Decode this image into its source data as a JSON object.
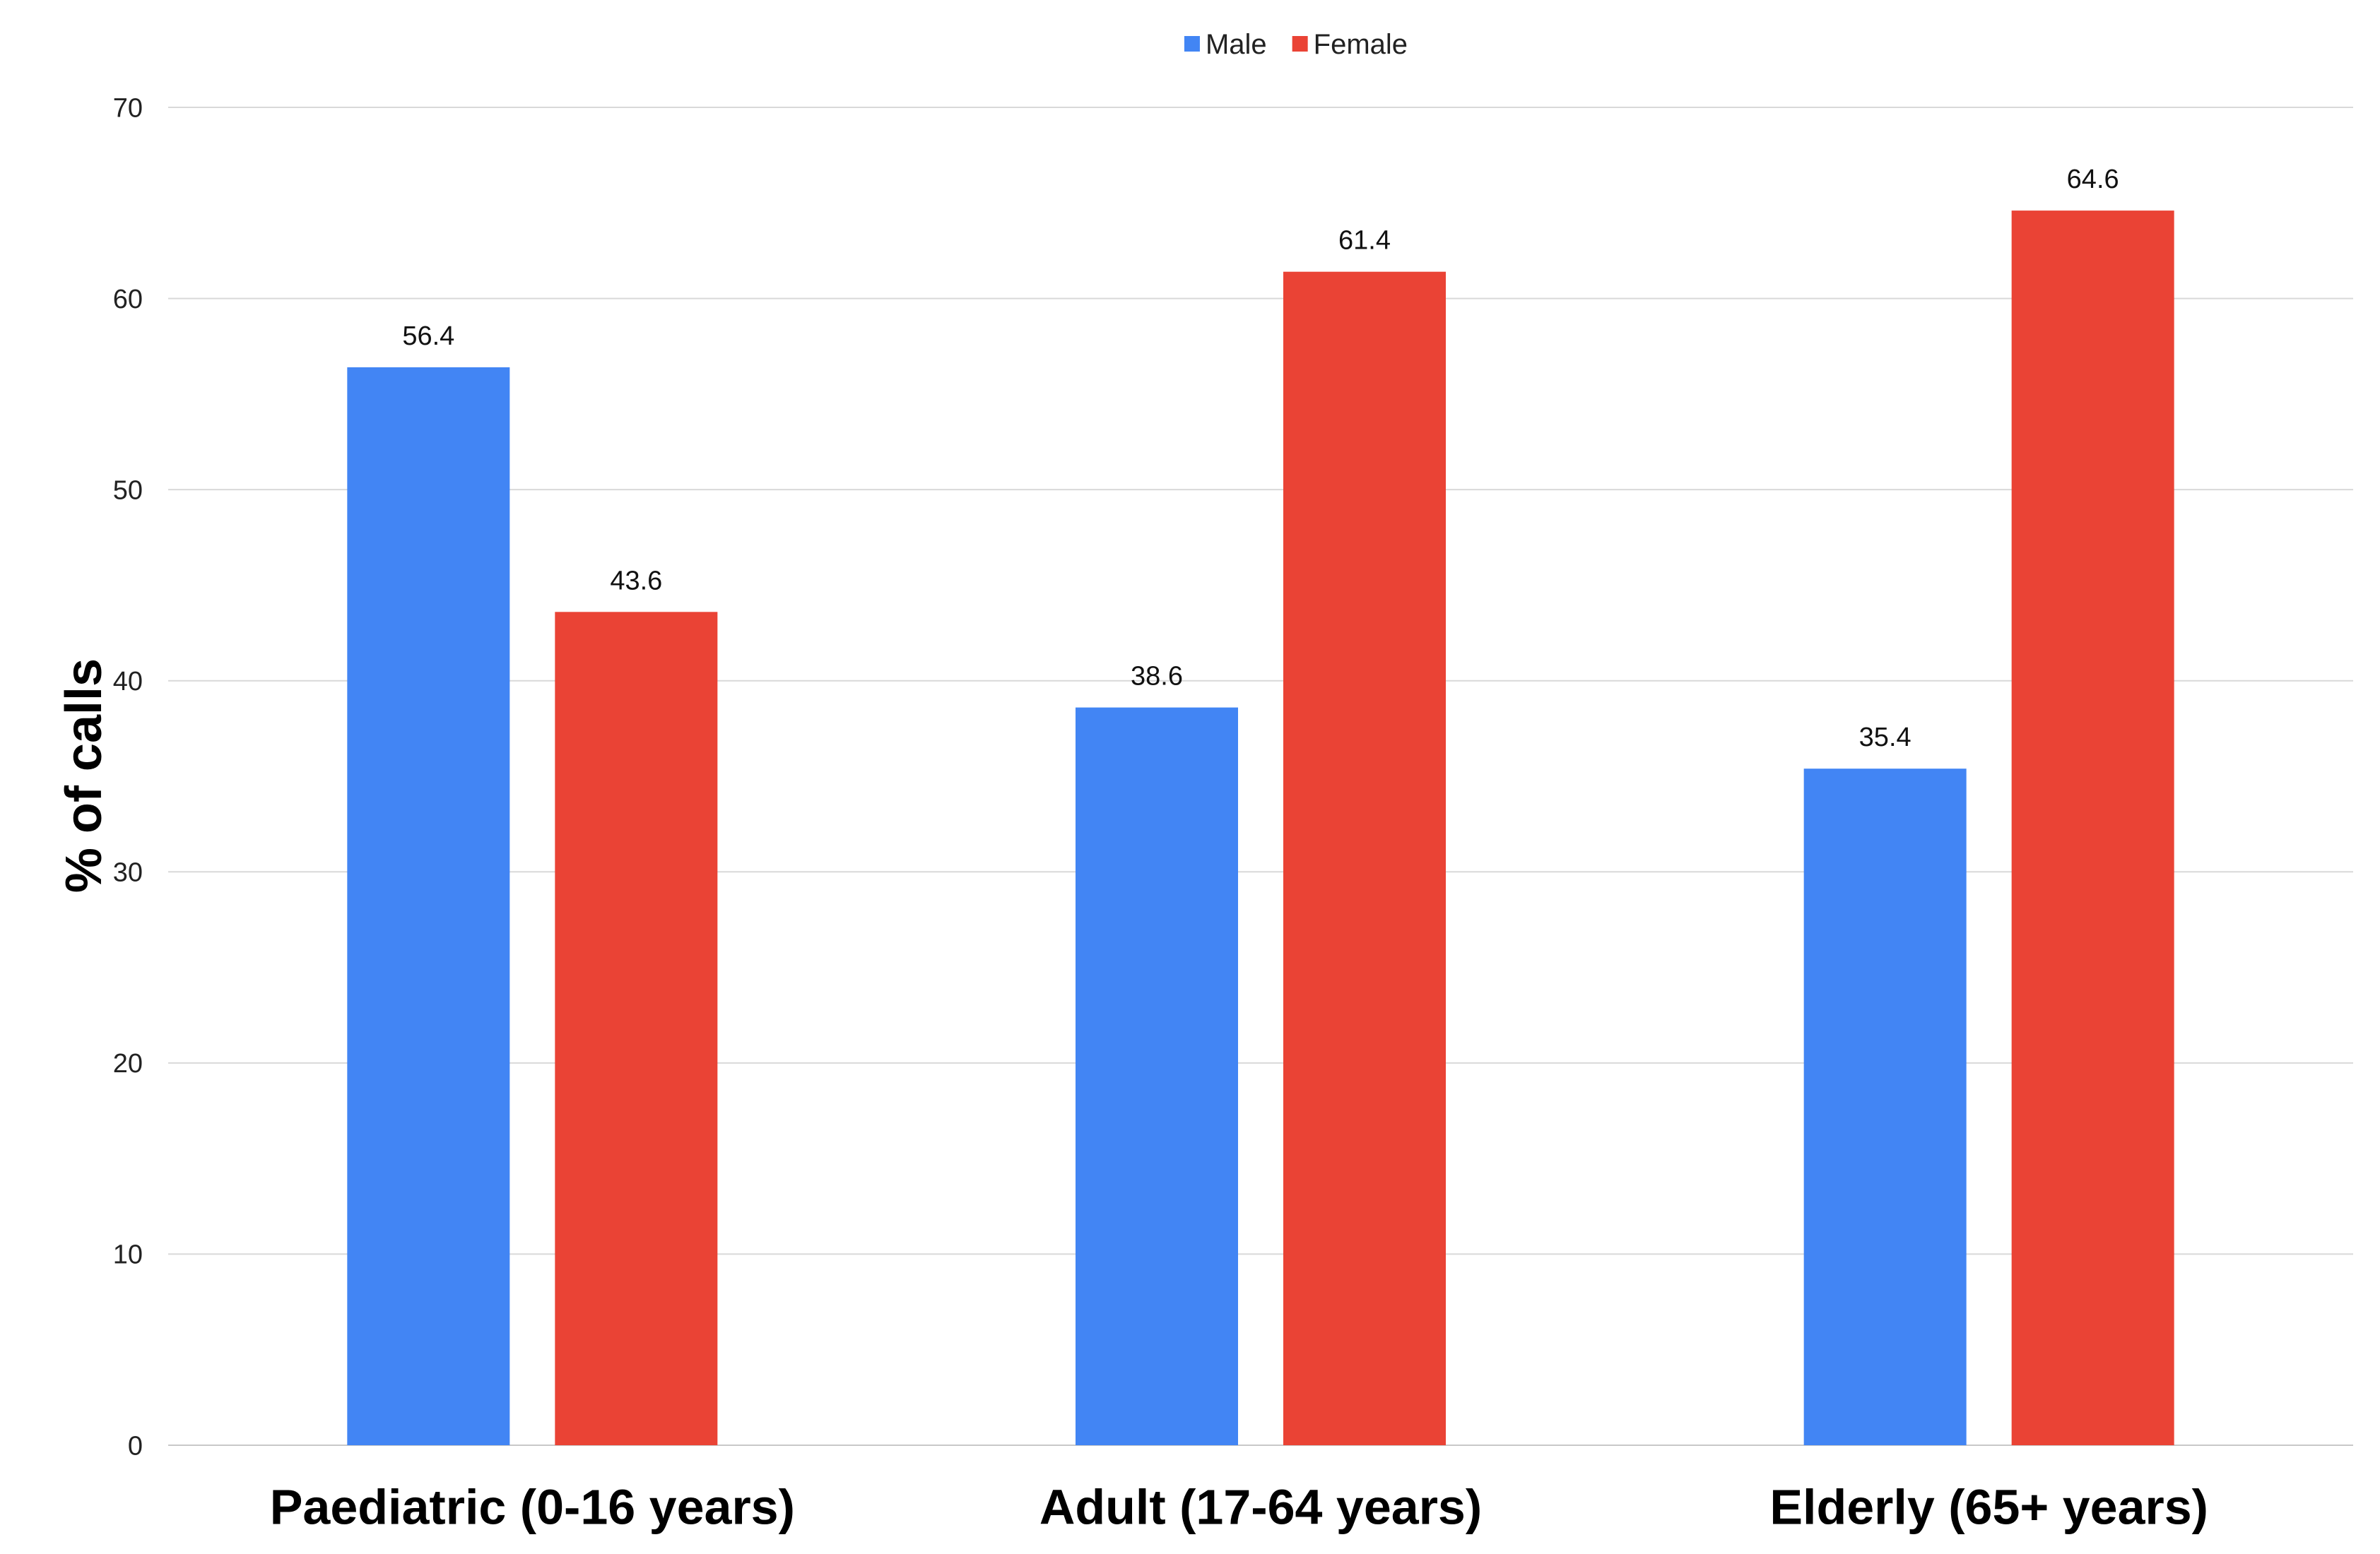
{
  "chart_data": {
    "type": "bar",
    "title": "",
    "xlabel": "",
    "ylabel": "% of calls",
    "categories": [
      "Paediatric (0-16 years)",
      "Adult (17-64 years)",
      "Elderly (65+ years)"
    ],
    "series": [
      {
        "name": "Male",
        "color": "#4285f4",
        "values": [
          56.4,
          38.6,
          35.4
        ],
        "labels": [
          "56.4",
          "38.6",
          "35.4"
        ]
      },
      {
        "name": "Female",
        "color": "#ea4335",
        "values": [
          43.6,
          61.4,
          64.6
        ],
        "labels": [
          "43.6",
          "61.4",
          "64.6"
        ]
      }
    ],
    "ylim": [
      0,
      70
    ],
    "yticks": [
      "0",
      "10",
      "20",
      "30",
      "40",
      "50",
      "60",
      "70"
    ],
    "grid": true,
    "legend_position": "top-center"
  }
}
